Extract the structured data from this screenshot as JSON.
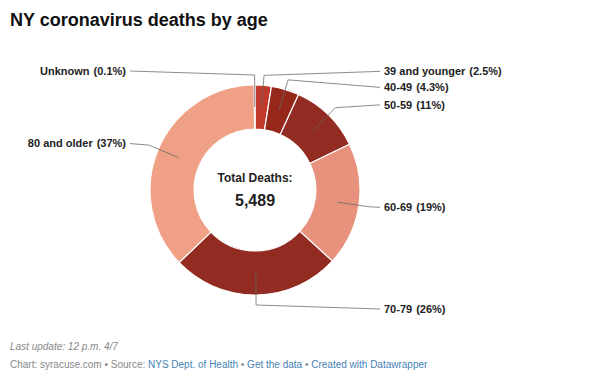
{
  "chart_data": {
    "type": "donut",
    "title": "NY coronavirus deaths by age",
    "categories": [
      "39 and younger",
      "40-49",
      "50-59",
      "60-69",
      "70-79",
      "80 and older",
      "Unknown"
    ],
    "values": [
      2.5,
      4.3,
      11.0,
      19.0,
      26.0,
      37.0,
      0.1
    ],
    "value_labels": [
      "(2.5%)",
      "(4.3%)",
      "(11%)",
      "(19%)",
      "(26%)",
      "(37%)",
      "(0.1%)"
    ],
    "colors": [
      "#C1392B",
      "#96281B",
      "#922B21",
      "#E8917C",
      "#922B21",
      "#F0A085",
      "#DDB8A5"
    ],
    "annotations": [
      "Total Deaths:",
      "5,489",
      "Last update: 12 p.m. 4/7",
      "Chart: syracuse.com • Source: ",
      "NYS Dept. of Health",
      " • ",
      "Get the data",
      " • ",
      "Created with Datawrapper"
    ]
  }
}
